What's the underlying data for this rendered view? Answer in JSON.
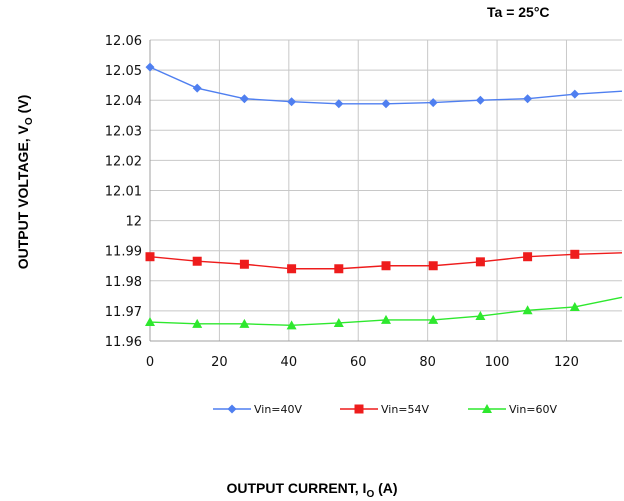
{
  "chart_data": {
    "type": "line",
    "annotation": "Ta = 25°C",
    "xlabel_main": "OUTPUT CURRENT, I",
    "xlabel_sub": "O",
    "xlabel_unit": " (A)",
    "ylabel_main": "OUTPUT VOLTAGE, V",
    "ylabel_sub": "O",
    "ylabel_unit": " (V)",
    "xlim": [
      0,
      136
    ],
    "ylim": [
      11.96,
      12.06
    ],
    "x_ticks": [
      "0",
      "20",
      "40",
      "60",
      "80",
      "100",
      "120"
    ],
    "y_ticks": [
      "11.96",
      "11.97",
      "11.98",
      "11.99",
      "12",
      "12.01",
      "12.02",
      "12.03",
      "12.04",
      "12.05",
      "12.06"
    ],
    "grid": true,
    "legend_position": "bottom",
    "series": [
      {
        "name": "Vin=40V",
        "color": "#4f7ff0",
        "marker": "diamond",
        "x": [
          0,
          13.6,
          27.2,
          40.8,
          54.4,
          68,
          81.6,
          95.2,
          108.8,
          122.4,
          136
        ],
        "y": [
          12.051,
          12.044,
          12.0405,
          12.0395,
          12.0388,
          12.0388,
          12.0392,
          12.04,
          12.0405,
          12.042,
          12.043
        ],
        "markers_on": [
          true,
          true,
          true,
          true,
          true,
          true,
          true,
          true,
          true,
          true,
          false
        ]
      },
      {
        "name": "Vin=54V",
        "color": "#ee1c1c",
        "marker": "square",
        "x": [
          0,
          13.6,
          27.2,
          40.8,
          54.4,
          68,
          81.6,
          95.2,
          108.8,
          122.4,
          136
        ],
        "y": [
          11.988,
          11.9865,
          11.9855,
          11.984,
          11.984,
          11.985,
          11.985,
          11.9863,
          11.988,
          11.9888,
          11.9893
        ],
        "markers_on": [
          true,
          true,
          true,
          true,
          true,
          true,
          true,
          true,
          true,
          true,
          false
        ]
      },
      {
        "name": "Vin=60V",
        "color": "#2ee82e",
        "marker": "triangle",
        "x": [
          0,
          13.6,
          27.2,
          40.8,
          54.4,
          68,
          81.6,
          95.2,
          108.8,
          122.4,
          136
        ],
        "y": [
          11.9663,
          11.9657,
          11.9657,
          11.9652,
          11.966,
          11.967,
          11.967,
          11.9683,
          11.9702,
          11.9713,
          11.9745
        ],
        "markers_on": [
          true,
          true,
          true,
          true,
          true,
          true,
          true,
          true,
          true,
          true,
          false
        ]
      }
    ]
  }
}
